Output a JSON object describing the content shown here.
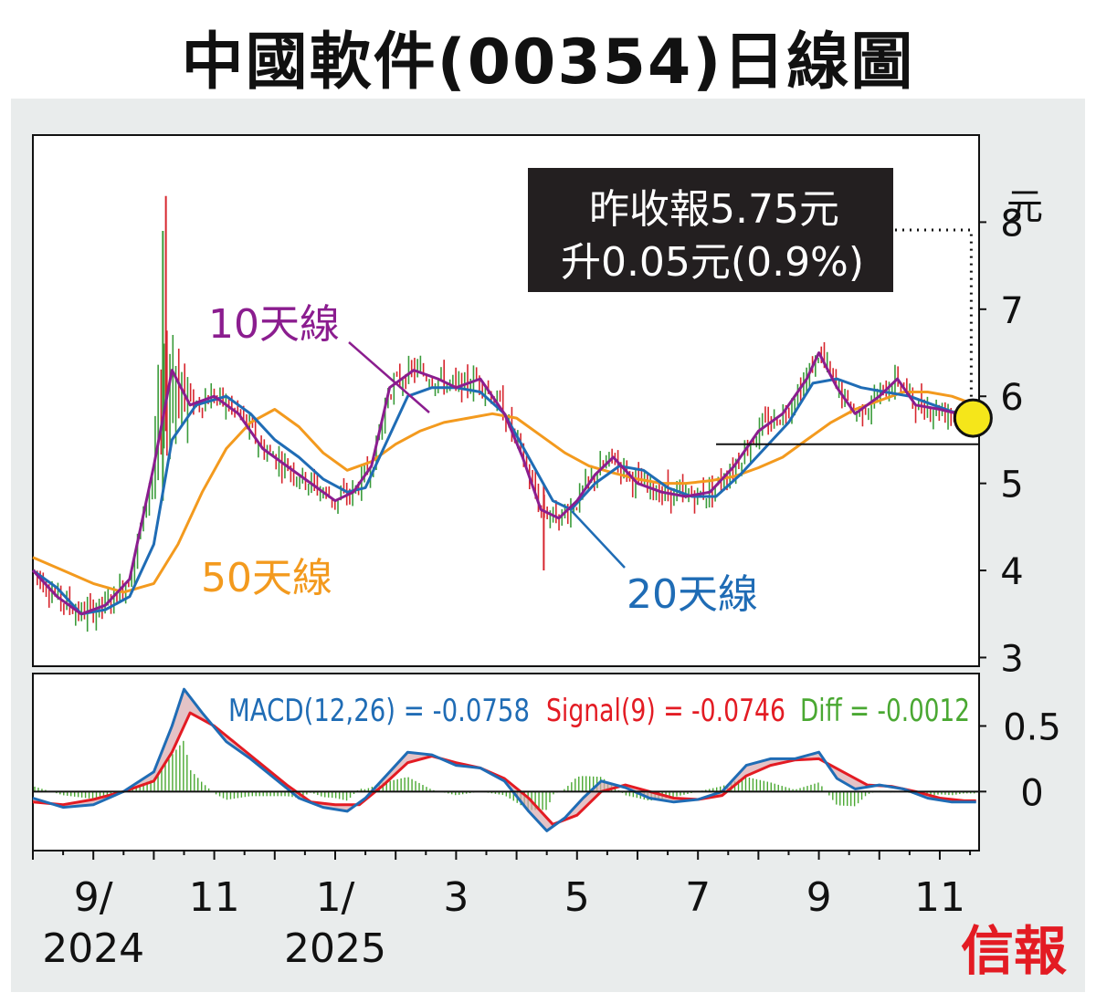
{
  "title": "中國軟件(00354)日線圖",
  "unit": "元",
  "annotation": {
    "line1": "昨收報5.75元",
    "line2": "升0.05元(0.9%)"
  },
  "labels": {
    "ma10": "10天線",
    "ma20": "20天線",
    "ma50": "50天線"
  },
  "macd_legend": {
    "macd": "MACD(12,26) = -0.0758",
    "signal": "Signal(9) = -0.0746",
    "diff": "Diff = -0.0012"
  },
  "brand": "信報",
  "colors": {
    "ma10": "#8b1d8f",
    "ma20": "#1f6cb5",
    "ma50": "#f39a1e",
    "macd": "#1f6cb5",
    "signal": "#e31b23",
    "diff": "#4aa832",
    "up": "#3a9b3a",
    "down": "#d7262e",
    "circle": "#f5e61a"
  },
  "chart_data": {
    "type": "line",
    "price_axis": {
      "ticks": [
        "3",
        "4",
        "5",
        "6",
        "7",
        "8"
      ],
      "ylim": [
        2.9,
        9.0
      ]
    },
    "macd_axis": {
      "ticks": [
        "0.5",
        "0"
      ],
      "ylim": [
        -0.45,
        0.9
      ]
    },
    "x_ticks": [
      {
        "label": "9/",
        "sub": "2024",
        "m": 1
      },
      {
        "label": "11",
        "sub": "",
        "m": 3
      },
      {
        "label": "1/",
        "sub": "2025",
        "m": 5
      },
      {
        "label": "3",
        "sub": "",
        "m": 7
      },
      {
        "label": "5",
        "sub": "",
        "m": 9
      },
      {
        "label": "7",
        "sub": "",
        "m": 11
      },
      {
        "label": "9",
        "sub": "",
        "m": 13
      },
      {
        "label": "11",
        "sub": "",
        "m": 15
      }
    ],
    "support_level": 5.45,
    "last_close": 5.75,
    "series": [
      {
        "name": "10天線",
        "key": "ma10",
        "points": [
          [
            0,
            4.0
          ],
          [
            0.4,
            3.7
          ],
          [
            0.8,
            3.5
          ],
          [
            1.2,
            3.6
          ],
          [
            1.6,
            3.9
          ],
          [
            2.0,
            5.2
          ],
          [
            2.3,
            6.3
          ],
          [
            2.6,
            5.9
          ],
          [
            3.0,
            6.0
          ],
          [
            3.4,
            5.8
          ],
          [
            3.8,
            5.4
          ],
          [
            4.2,
            5.2
          ],
          [
            4.6,
            5.0
          ],
          [
            5.0,
            4.8
          ],
          [
            5.3,
            4.9
          ],
          [
            5.6,
            5.2
          ],
          [
            5.9,
            6.1
          ],
          [
            6.3,
            6.3
          ],
          [
            6.7,
            6.2
          ],
          [
            7.0,
            6.1
          ],
          [
            7.4,
            6.2
          ],
          [
            7.8,
            5.8
          ],
          [
            8.1,
            5.3
          ],
          [
            8.4,
            4.7
          ],
          [
            8.7,
            4.6
          ],
          [
            9.0,
            4.8
          ],
          [
            9.3,
            5.1
          ],
          [
            9.6,
            5.3
          ],
          [
            10.0,
            5.0
          ],
          [
            10.4,
            4.9
          ],
          [
            10.8,
            4.85
          ],
          [
            11.2,
            4.9
          ],
          [
            11.6,
            5.2
          ],
          [
            12.0,
            5.6
          ],
          [
            12.4,
            5.8
          ],
          [
            12.8,
            6.2
          ],
          [
            13.0,
            6.5
          ],
          [
            13.3,
            6.1
          ],
          [
            13.6,
            5.8
          ],
          [
            14.0,
            6.0
          ],
          [
            14.3,
            6.2
          ],
          [
            14.6,
            5.9
          ],
          [
            15.0,
            5.85
          ],
          [
            15.3,
            5.8
          ],
          [
            15.6,
            5.75
          ]
        ]
      },
      {
        "name": "20天線",
        "key": "ma20",
        "points": [
          [
            0,
            4.0
          ],
          [
            0.4,
            3.8
          ],
          [
            0.8,
            3.5
          ],
          [
            1.2,
            3.55
          ],
          [
            1.6,
            3.7
          ],
          [
            2.0,
            4.3
          ],
          [
            2.3,
            5.5
          ],
          [
            2.7,
            5.9
          ],
          [
            3.2,
            6.0
          ],
          [
            3.6,
            5.8
          ],
          [
            4.0,
            5.5
          ],
          [
            4.4,
            5.3
          ],
          [
            4.8,
            5.05
          ],
          [
            5.2,
            4.9
          ],
          [
            5.5,
            4.95
          ],
          [
            5.8,
            5.4
          ],
          [
            6.2,
            6.0
          ],
          [
            6.6,
            6.1
          ],
          [
            7.0,
            6.1
          ],
          [
            7.4,
            6.05
          ],
          [
            7.8,
            5.8
          ],
          [
            8.2,
            5.3
          ],
          [
            8.6,
            4.8
          ],
          [
            8.9,
            4.7
          ],
          [
            9.3,
            5.0
          ],
          [
            9.7,
            5.2
          ],
          [
            10.1,
            5.15
          ],
          [
            10.5,
            4.95
          ],
          [
            10.9,
            4.85
          ],
          [
            11.3,
            4.85
          ],
          [
            11.7,
            5.1
          ],
          [
            12.1,
            5.4
          ],
          [
            12.5,
            5.7
          ],
          [
            12.9,
            6.15
          ],
          [
            13.3,
            6.2
          ],
          [
            13.7,
            6.1
          ],
          [
            14.1,
            6.05
          ],
          [
            14.5,
            6.0
          ],
          [
            14.9,
            5.9
          ],
          [
            15.3,
            5.8
          ],
          [
            15.6,
            5.75
          ]
        ]
      },
      {
        "name": "50天線",
        "key": "ma50",
        "points": [
          [
            0,
            4.15
          ],
          [
            0.5,
            4.0
          ],
          [
            1.0,
            3.85
          ],
          [
            1.5,
            3.75
          ],
          [
            2.0,
            3.85
          ],
          [
            2.4,
            4.3
          ],
          [
            2.8,
            4.9
          ],
          [
            3.2,
            5.4
          ],
          [
            3.6,
            5.7
          ],
          [
            4.0,
            5.85
          ],
          [
            4.4,
            5.65
          ],
          [
            4.8,
            5.35
          ],
          [
            5.2,
            5.15
          ],
          [
            5.6,
            5.25
          ],
          [
            6.0,
            5.45
          ],
          [
            6.4,
            5.6
          ],
          [
            6.8,
            5.7
          ],
          [
            7.2,
            5.75
          ],
          [
            7.6,
            5.8
          ],
          [
            8.0,
            5.75
          ],
          [
            8.4,
            5.55
          ],
          [
            8.8,
            5.35
          ],
          [
            9.2,
            5.2
          ],
          [
            9.6,
            5.12
          ],
          [
            10.0,
            5.05
          ],
          [
            10.4,
            5.0
          ],
          [
            10.8,
            5.0
          ],
          [
            11.2,
            5.03
          ],
          [
            11.6,
            5.08
          ],
          [
            12.0,
            5.18
          ],
          [
            12.4,
            5.3
          ],
          [
            12.8,
            5.5
          ],
          [
            13.2,
            5.7
          ],
          [
            13.6,
            5.85
          ],
          [
            14.0,
            5.95
          ],
          [
            14.4,
            6.05
          ],
          [
            14.8,
            6.05
          ],
          [
            15.2,
            6.0
          ],
          [
            15.6,
            5.9
          ]
        ]
      },
      {
        "name": "MACD(12,26)",
        "key": "macd",
        "points": [
          [
            0,
            -0.05
          ],
          [
            0.5,
            -0.12
          ],
          [
            1.0,
            -0.1
          ],
          [
            1.5,
            0.0
          ],
          [
            2.0,
            0.15
          ],
          [
            2.3,
            0.5
          ],
          [
            2.5,
            0.78
          ],
          [
            2.8,
            0.6
          ],
          [
            3.2,
            0.38
          ],
          [
            3.6,
            0.25
          ],
          [
            4.0,
            0.1
          ],
          [
            4.4,
            -0.05
          ],
          [
            4.8,
            -0.12
          ],
          [
            5.2,
            -0.15
          ],
          [
            5.5,
            -0.05
          ],
          [
            5.9,
            0.15
          ],
          [
            6.2,
            0.3
          ],
          [
            6.6,
            0.28
          ],
          [
            7.0,
            0.2
          ],
          [
            7.4,
            0.18
          ],
          [
            7.8,
            0.08
          ],
          [
            8.2,
            -0.15
          ],
          [
            8.5,
            -0.3
          ],
          [
            8.8,
            -0.2
          ],
          [
            9.1,
            -0.05
          ],
          [
            9.4,
            0.08
          ],
          [
            9.8,
            0.03
          ],
          [
            10.2,
            -0.05
          ],
          [
            10.6,
            -0.08
          ],
          [
            11.0,
            -0.06
          ],
          [
            11.4,
            0.0
          ],
          [
            11.8,
            0.2
          ],
          [
            12.2,
            0.25
          ],
          [
            12.6,
            0.25
          ],
          [
            13.0,
            0.3
          ],
          [
            13.3,
            0.1
          ],
          [
            13.6,
            0.02
          ],
          [
            14.0,
            0.05
          ],
          [
            14.4,
            0.02
          ],
          [
            14.8,
            -0.05
          ],
          [
            15.2,
            -0.08
          ],
          [
            15.6,
            -0.08
          ]
        ]
      },
      {
        "name": "Signal(9)",
        "key": "signal",
        "points": [
          [
            0,
            -0.08
          ],
          [
            0.5,
            -0.1
          ],
          [
            1.0,
            -0.06
          ],
          [
            1.5,
            0.0
          ],
          [
            2.0,
            0.08
          ],
          [
            2.3,
            0.3
          ],
          [
            2.6,
            0.6
          ],
          [
            3.0,
            0.5
          ],
          [
            3.4,
            0.35
          ],
          [
            3.8,
            0.2
          ],
          [
            4.2,
            0.05
          ],
          [
            4.6,
            -0.08
          ],
          [
            5.0,
            -0.1
          ],
          [
            5.4,
            -0.1
          ],
          [
            5.8,
            0.05
          ],
          [
            6.2,
            0.22
          ],
          [
            6.6,
            0.27
          ],
          [
            7.0,
            0.22
          ],
          [
            7.4,
            0.18
          ],
          [
            7.8,
            0.1
          ],
          [
            8.2,
            -0.05
          ],
          [
            8.6,
            -0.25
          ],
          [
            9.0,
            -0.18
          ],
          [
            9.4,
            0.0
          ],
          [
            9.8,
            0.05
          ],
          [
            10.2,
            0.0
          ],
          [
            10.6,
            -0.05
          ],
          [
            11.0,
            -0.06
          ],
          [
            11.4,
            -0.03
          ],
          [
            11.8,
            0.12
          ],
          [
            12.2,
            0.2
          ],
          [
            12.6,
            0.24
          ],
          [
            13.0,
            0.25
          ],
          [
            13.4,
            0.15
          ],
          [
            13.8,
            0.05
          ],
          [
            14.2,
            0.04
          ],
          [
            14.6,
            0.0
          ],
          [
            15.0,
            -0.05
          ],
          [
            15.4,
            -0.07
          ],
          [
            15.6,
            -0.07
          ]
        ]
      }
    ]
  }
}
